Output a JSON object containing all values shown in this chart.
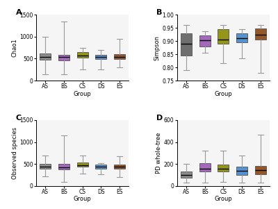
{
  "groups": [
    "AS",
    "BS",
    "CS",
    "DS",
    "ES"
  ],
  "colors_ABCD": [
    [
      "#808080",
      "#9b59b6",
      "#8b8b00",
      "#4488cc",
      "#8b4513"
    ],
    [
      "#606060",
      "#9b59b6",
      "#8b8b00",
      "#4488cc",
      "#8b4513"
    ],
    [
      "#808080",
      "#9b59b6",
      "#8b8b00",
      "#4488cc",
      "#8b4513"
    ],
    [
      "#808080",
      "#9b59b6",
      "#8b8b00",
      "#4488cc",
      "#8b4513"
    ]
  ],
  "panel_labels": [
    "A",
    "B",
    "C",
    "D"
  ],
  "ylabels": [
    "Chao1",
    "Simpson",
    "Observed species",
    "PD whole-tree"
  ],
  "xlabel": "Group",
  "chao1": {
    "whislo": [
      150,
      150,
      250,
      250,
      300
    ],
    "q1": [
      480,
      460,
      520,
      490,
      490
    ],
    "med": [
      545,
      530,
      570,
      545,
      540
    ],
    "q3": [
      620,
      590,
      640,
      590,
      595
    ],
    "whishi": [
      1000,
      1350,
      750,
      700,
      950
    ]
  },
  "simpson": {
    "whislo": [
      0.79,
      0.855,
      0.815,
      0.835,
      0.78
    ],
    "q1": [
      0.845,
      0.88,
      0.89,
      0.895,
      0.905
    ],
    "med": [
      0.89,
      0.902,
      0.905,
      0.91,
      0.925
    ],
    "q3": [
      0.93,
      0.92,
      0.945,
      0.93,
      0.948
    ],
    "whishi": [
      0.96,
      0.938,
      0.96,
      0.945,
      0.96
    ]
  },
  "observed": {
    "whislo": [
      220,
      100,
      280,
      260,
      200
    ],
    "q1": [
      390,
      370,
      435,
      400,
      395
    ],
    "med": [
      440,
      430,
      475,
      445,
      440
    ],
    "q3": [
      510,
      510,
      540,
      495,
      490
    ],
    "whishi": [
      700,
      1150,
      700,
      520,
      670
    ]
  },
  "pd": {
    "whislo": [
      30,
      30,
      35,
      30,
      30
    ],
    "q1": [
      75,
      130,
      130,
      100,
      105
    ],
    "med": [
      100,
      155,
      160,
      140,
      145
    ],
    "q3": [
      130,
      210,
      195,
      175,
      185
    ],
    "whishi": [
      200,
      320,
      320,
      280,
      470
    ]
  },
  "chao1_ylim": [
    0,
    1500
  ],
  "simpson_ylim": [
    0.75,
    1.0
  ],
  "observed_ylim": [
    0,
    1500
  ],
  "pd_ylim": [
    0,
    600
  ],
  "chao1_yticks": [
    0,
    500,
    1000,
    1500
  ],
  "simpson_yticks": [
    0.75,
    0.8,
    0.85,
    0.9,
    0.95,
    1.0
  ],
  "observed_yticks": [
    0,
    500,
    1000,
    1500
  ],
  "pd_yticks": [
    0,
    200,
    400,
    600
  ],
  "bg_color": "#f5f5f5"
}
